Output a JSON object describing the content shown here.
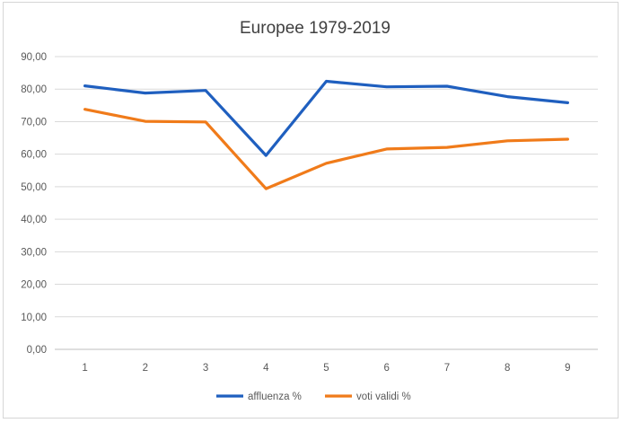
{
  "chart_data": {
    "type": "line",
    "title": "Europee 1979-2019",
    "categories": [
      "1",
      "2",
      "3",
      "4",
      "5",
      "6",
      "7",
      "8",
      "9"
    ],
    "ylim": [
      0,
      90
    ],
    "yticks": [
      "0,00",
      "10,00",
      "20,00",
      "30,00",
      "40,00",
      "50,00",
      "60,00",
      "70,00",
      "80,00",
      "90,00"
    ],
    "ytick_values": [
      0,
      10,
      20,
      30,
      40,
      50,
      60,
      70,
      80,
      90
    ],
    "grid": true,
    "legend_position": "bottom",
    "series": [
      {
        "name": "affluenza %",
        "color": "#1F5FBF",
        "values": [
          81.0,
          78.8,
          79.6,
          59.6,
          82.4,
          80.7,
          80.9,
          77.7,
          75.8
        ]
      },
      {
        "name": "voti validi %",
        "color": "#F07B1A",
        "values": [
          73.8,
          70.1,
          69.9,
          49.4,
          57.2,
          61.6,
          62.1,
          64.1,
          64.6
        ]
      }
    ]
  }
}
